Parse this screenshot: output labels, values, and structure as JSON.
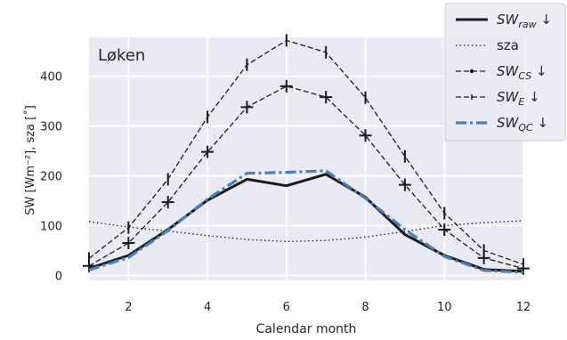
{
  "chart_data": {
    "type": "line",
    "annotation": "Løken",
    "xlabel": "Calendar month",
    "ylabel": "SW [Wm⁻²], sza [˚]",
    "xlim": [
      1,
      12
    ],
    "ylim": [
      -10,
      478
    ],
    "xticks": [
      2,
      4,
      6,
      8,
      10,
      12
    ],
    "yticks": [
      0,
      100,
      200,
      300,
      400
    ],
    "grid": true,
    "legend_position": "top-right outside",
    "x": [
      1,
      2,
      3,
      4,
      5,
      6,
      7,
      8,
      9,
      10,
      11,
      12
    ],
    "series": [
      {
        "name": "SW_raw ↓",
        "legend_main": "SW",
        "legend_sub": "raw",
        "legend_suffix": " ↓",
        "style": "solid",
        "color": "#1a1a1a",
        "values": [
          14,
          40,
          92,
          151,
          193,
          180,
          203,
          157,
          82,
          40,
          12,
          8
        ]
      },
      {
        "name": "sza",
        "legend_main": "sza",
        "legend_sub": "",
        "legend_suffix": "",
        "style": "dotted",
        "color": "#1a1a1a",
        "values": [
          108,
          97,
          89,
          80,
          72,
          68,
          70,
          77,
          88,
          100,
          106,
          110
        ]
      },
      {
        "name": "SW_CS ↓",
        "legend_main": "SW",
        "legend_sub": "CS",
        "legend_suffix": " ↓",
        "style": "dashed-plus",
        "color": "#1a1a1a",
        "values": [
          19,
          65,
          147,
          248,
          338,
          380,
          358,
          281,
          182,
          92,
          35,
          14
        ]
      },
      {
        "name": "SW_E ↓",
        "legend_main": "SW",
        "legend_sub": "E",
        "legend_suffix": " ↓",
        "style": "dashed-vtick",
        "color": "#1a1a1a",
        "values": [
          34,
          96,
          193,
          318,
          423,
          472,
          448,
          357,
          239,
          125,
          50,
          22
        ]
      },
      {
        "name": "SW_QC ↓",
        "legend_main": "SW",
        "legend_sub": "QC",
        "legend_suffix": " ↓",
        "style": "dashdot",
        "color": "#4a7fb8",
        "values": [
          11,
          36,
          90,
          153,
          205,
          207,
          210,
          155,
          92,
          38,
          10,
          6
        ]
      }
    ]
  }
}
